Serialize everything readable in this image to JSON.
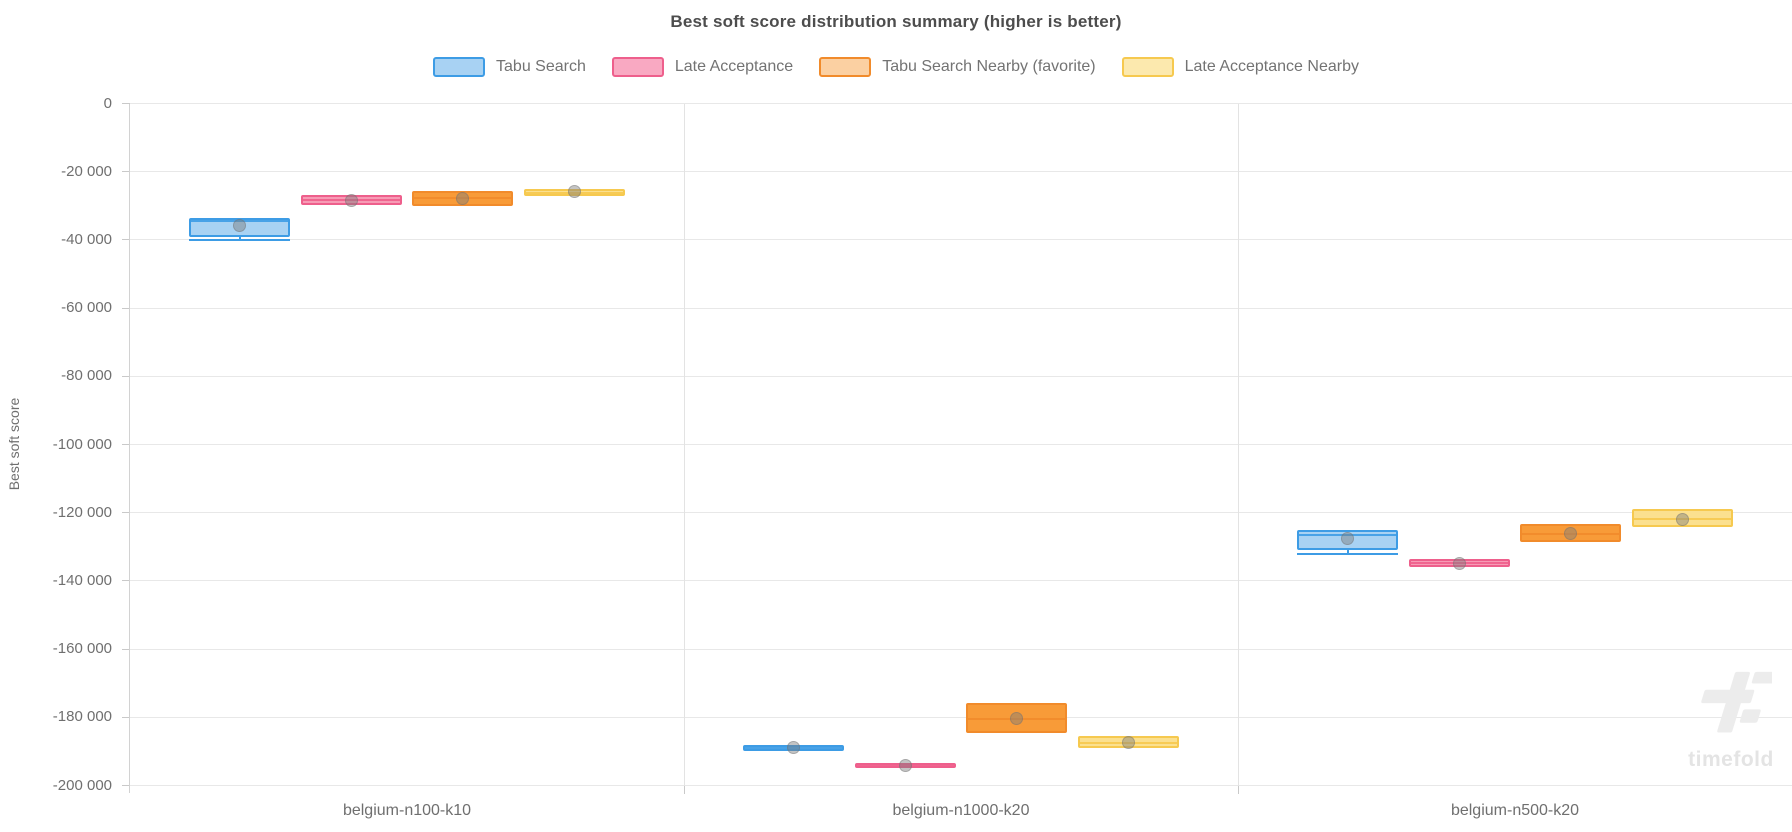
{
  "title": "Best soft score distribution summary (higher is better)",
  "watermark": {
    "text": "timefold"
  },
  "chart_data": {
    "type": "boxplot",
    "title": "Best soft score distribution summary (higher is better)",
    "xlabel": "",
    "ylabel": "Best soft score",
    "categories": [
      "belgium-n100-k10",
      "belgium-n1000-k20",
      "belgium-n500-k20"
    ],
    "ylim": [
      -200000,
      0
    ],
    "grid": true,
    "legend_position": "top",
    "yticks": [
      {
        "value": 0,
        "label": "0"
      },
      {
        "value": -20000,
        "label": "-20 000"
      },
      {
        "value": -40000,
        "label": "-40 000"
      },
      {
        "value": -60000,
        "label": "-60 000"
      },
      {
        "value": -80000,
        "label": "-80 000"
      },
      {
        "value": -100000,
        "label": "-100 000"
      },
      {
        "value": -120000,
        "label": "-120 000"
      },
      {
        "value": -140000,
        "label": "-140 000"
      },
      {
        "value": -160000,
        "label": "-160 000"
      },
      {
        "value": -180000,
        "label": "-180 000"
      },
      {
        "value": -200000,
        "label": "-200 000"
      }
    ],
    "series": [
      {
        "name": "Tabu Search",
        "border_color": "#3D9CE5",
        "fill_color": "#A8D2F3",
        "legend_fill": "#A8D2F3",
        "data": [
          {
            "min": -39900,
            "q1": -39100,
            "median": -34600,
            "q3": -33700,
            "max": -33700,
            "mean": -35900
          },
          {
            "min": -189900,
            "q1": -189800,
            "median": -189000,
            "q3": -188200,
            "max": -188200,
            "mean": -188900
          },
          {
            "min": -132100,
            "q1": -131000,
            "median": -126400,
            "q3": -125100,
            "max": -125100,
            "mean": -127500
          }
        ]
      },
      {
        "name": "Late Acceptance",
        "border_color": "#EE5F8C",
        "fill_color": "#F79BB5",
        "legend_fill": "#F9A9C2",
        "data": [
          {
            "min": -29900,
            "q1": -29800,
            "median": -28400,
            "q3": -26900,
            "max": -26900,
            "mean": -28300
          },
          {
            "min": -195100,
            "q1": -195000,
            "median": -194200,
            "q3": -193300,
            "max": -193300,
            "mean": -194200
          },
          {
            "min": -135900,
            "q1": -135800,
            "median": -134800,
            "q3": -133700,
            "max": -133700,
            "mean": -134800
          }
        ]
      },
      {
        "name": "Tabu Search Nearby (favorite)",
        "border_color": "#F18B2B",
        "fill_color": "#F89B38",
        "legend_fill": "#FBD0A2",
        "data": [
          {
            "min": -30300,
            "q1": -30100,
            "median": -27800,
            "q3": -25600,
            "max": -25600,
            "mean": -27800
          },
          {
            "min": -184700,
            "q1": -184500,
            "median": -180500,
            "q3": -175700,
            "max": -175700,
            "mean": -180300
          },
          {
            "min": -128700,
            "q1": -128500,
            "median": -126100,
            "q3": -123400,
            "max": -123400,
            "mean": -126100
          }
        ]
      },
      {
        "name": "Late Acceptance Nearby",
        "border_color": "#F6C94F",
        "fill_color": "#FBE08F",
        "legend_fill": "#FCE9AE",
        "data": [
          {
            "min": -27300,
            "q1": -27100,
            "median": -26100,
            "q3": -25200,
            "max": -25200,
            "mean": -25700
          },
          {
            "min": -189300,
            "q1": -189100,
            "median": -187500,
            "q3": -185500,
            "max": -185500,
            "mean": -187500
          },
          {
            "min": -124400,
            "q1": -124300,
            "median": -121900,
            "q3": -119000,
            "max": -119000,
            "mean": -122000
          }
        ]
      }
    ]
  }
}
